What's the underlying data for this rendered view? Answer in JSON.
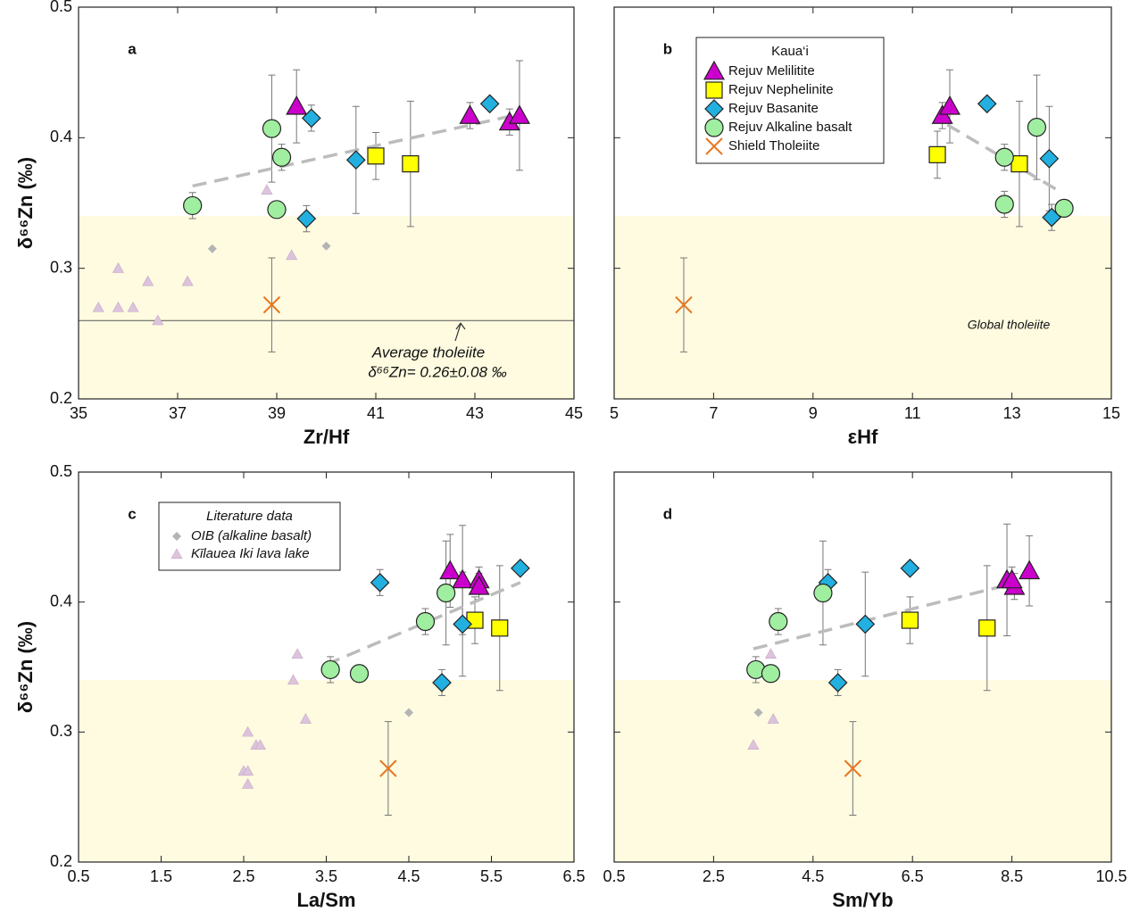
{
  "chart_data": [
    {
      "type": "scatter",
      "panel_label": "a",
      "x_label": "Zr/Hf",
      "y_label": "δ⁶⁶Zn (‰)",
      "xlim": [
        35,
        45
      ],
      "ylim": [
        0.2,
        0.5
      ],
      "xticks": [
        35,
        37,
        39,
        41,
        43,
        45
      ],
      "yticks": [
        0.2,
        0.3,
        0.4,
        0.5
      ],
      "ytick_labels": true,
      "shaded_range": [
        0.2,
        0.34
      ],
      "reference_line": 0.26,
      "annotations": [
        "Average tholeiite",
        "δ⁶⁶Zn= 0.26±0.08 ‰"
      ],
      "trend": {
        "x": [
          37.3,
          43.9
        ],
        "values": [
          0.363,
          0.418
        ]
      },
      "series": [
        {
          "marker": "triangle",
          "color": "#cc00cc",
          "x": [
            39.4,
            42.9,
            43.7,
            43.9
          ],
          "values": [
            0.424,
            0.417,
            0.412,
            0.417
          ],
          "errors": [
            0.028,
            0.01,
            0.01,
            0.042
          ]
        },
        {
          "marker": "square",
          "color": "#ffff00",
          "x": [
            41.0,
            41.7
          ],
          "values": [
            0.386,
            0.38
          ],
          "errors": [
            0.018,
            0.048
          ]
        },
        {
          "marker": "diamond",
          "color": "#22b0e0",
          "x": [
            39.7,
            40.6,
            39.6,
            43.3
          ],
          "values": [
            0.415,
            0.383,
            0.338,
            0.426
          ],
          "errors": [
            0.01,
            0.041,
            0.01,
            null
          ]
        },
        {
          "marker": "circle",
          "color": "#a0eea0",
          "x": [
            38.9,
            39.1,
            39.0,
            37.3
          ],
          "values": [
            0.407,
            0.385,
            0.345,
            0.348
          ],
          "errors": [
            0.041,
            0.01,
            null,
            0.01
          ]
        },
        {
          "marker": "x",
          "color": "#e87722",
          "x": [
            38.9
          ],
          "values": [
            0.272
          ],
          "errors": [
            0.036
          ]
        },
        {
          "marker": "small-diamond",
          "color": "#b4b4b4",
          "x": [
            37.7,
            40.0
          ],
          "values": [
            0.315,
            0.317
          ],
          "errors": [
            null,
            null
          ]
        },
        {
          "marker": "small-triangle",
          "color": "#dcc4dc",
          "x": [
            35.4,
            35.8,
            36.1,
            35.8,
            36.4,
            36.6,
            37.2,
            38.8,
            39.3
          ],
          "values": [
            0.27,
            0.27,
            0.27,
            0.3,
            0.29,
            0.26,
            0.29,
            0.36,
            0.31
          ],
          "errors": [
            null,
            null,
            null,
            null,
            null,
            null,
            null,
            null,
            null
          ]
        }
      ]
    },
    {
      "type": "scatter",
      "panel_label": "b",
      "x_label": "εHf",
      "xlim": [
        5,
        15
      ],
      "ylim": [
        0.2,
        0.5
      ],
      "xticks": [
        5,
        7,
        9,
        11,
        13,
        15
      ],
      "yticks": [
        0.2,
        0.3,
        0.4,
        0.5
      ],
      "ytick_labels": false,
      "shaded_range": [
        0.2,
        0.34
      ],
      "annotations": [
        "Global tholeiite"
      ],
      "legend": {
        "title": "Kaua‘i",
        "corner": "top-right"
      },
      "trend": {
        "x": [
          11.7,
          14.0
        ],
        "values": [
          0.41,
          0.358
        ]
      },
      "series": [
        {
          "name": "Rejuv Melilitite",
          "marker": "triangle",
          "color": "#cc00cc",
          "x": [
            11.6,
            11.75
          ],
          "values": [
            0.417,
            0.424
          ],
          "errors": [
            0.01,
            0.028
          ]
        },
        {
          "name": "Rejuv Nephelinite",
          "marker": "square",
          "color": "#ffff00",
          "x": [
            11.5,
            13.15
          ],
          "values": [
            0.387,
            0.38
          ],
          "errors": [
            0.018,
            0.048
          ]
        },
        {
          "name": "Rejuv Basanite",
          "marker": "diamond",
          "color": "#22b0e0",
          "x": [
            12.5,
            13.75,
            13.8
          ],
          "values": [
            0.426,
            0.384,
            0.339
          ],
          "errors": [
            null,
            0.04,
            0.01
          ]
        },
        {
          "name": "Rejuv Alkaline basalt",
          "marker": "circle",
          "color": "#a0eea0",
          "x": [
            13.5,
            12.85,
            12.85,
            14.05
          ],
          "values": [
            0.408,
            0.385,
            0.349,
            0.346
          ],
          "errors": [
            0.04,
            0.01,
            0.01,
            null
          ]
        },
        {
          "name": "Shield Tholeiite",
          "marker": "x",
          "color": "#e87722",
          "x": [
            6.4
          ],
          "values": [
            0.272
          ],
          "errors": [
            0.036
          ]
        }
      ]
    },
    {
      "type": "scatter",
      "panel_label": "c",
      "x_label": "La/Sm",
      "y_label": "δ⁶⁶Zn (‰)",
      "xlim": [
        0.5,
        6.5
      ],
      "ylim": [
        0.2,
        0.5
      ],
      "xticks": [
        0.5,
        1.5,
        2.5,
        3.5,
        4.5,
        5.5,
        6.5
      ],
      "yticks": [
        0.2,
        0.3,
        0.4,
        0.5
      ],
      "ytick_labels": true,
      "shaded_range": [
        0.2,
        0.34
      ],
      "legend": {
        "title": "Literature data",
        "corner": "top-left"
      },
      "trend": {
        "x": [
          3.5,
          5.85
        ],
        "values": [
          0.352,
          0.415
        ]
      },
      "series": [
        {
          "marker": "triangle",
          "color": "#cc00cc",
          "x": [
            5.0,
            5.15,
            5.35,
            5.35
          ],
          "values": [
            0.424,
            0.417,
            0.417,
            0.412
          ],
          "errors": [
            0.028,
            0.042,
            0.01,
            0.01
          ]
        },
        {
          "marker": "square",
          "color": "#ffff00",
          "x": [
            5.3,
            5.6
          ],
          "values": [
            0.386,
            0.38
          ],
          "errors": [
            0.018,
            0.048
          ]
        },
        {
          "marker": "diamond",
          "color": "#22b0e0",
          "x": [
            4.15,
            5.85,
            5.15,
            4.9
          ],
          "values": [
            0.415,
            0.426,
            0.383,
            0.338
          ],
          "errors": [
            0.01,
            null,
            0.04,
            0.01
          ]
        },
        {
          "marker": "circle",
          "color": "#a0eea0",
          "x": [
            4.95,
            4.7,
            3.55,
            3.9
          ],
          "values": [
            0.407,
            0.385,
            0.348,
            0.345
          ],
          "errors": [
            0.04,
            0.01,
            0.01,
            null
          ]
        },
        {
          "marker": "x",
          "color": "#e87722",
          "x": [
            4.25
          ],
          "values": [
            0.272
          ],
          "errors": [
            0.036
          ]
        },
        {
          "name": "OIB (alkaline basalt)",
          "marker": "small-diamond",
          "color": "#b4b4b4",
          "x": [
            4.5
          ],
          "values": [
            0.315
          ],
          "errors": [
            null
          ]
        },
        {
          "name": "Kīlauea Iki lava lake",
          "marker": "small-triangle",
          "color": "#dcc4dc",
          "x": [
            2.55,
            2.65,
            2.7,
            2.5,
            2.55,
            2.55,
            3.15,
            3.1,
            3.25
          ],
          "values": [
            0.3,
            0.29,
            0.29,
            0.27,
            0.27,
            0.26,
            0.36,
            0.34,
            0.31
          ],
          "errors": [
            null,
            null,
            null,
            null,
            null,
            null,
            null,
            null,
            null
          ]
        }
      ]
    },
    {
      "type": "scatter",
      "panel_label": "d",
      "x_label": "Sm/Yb",
      "xlim": [
        0.5,
        10.5
      ],
      "ylim": [
        0.2,
        0.5
      ],
      "xticks": [
        0.5,
        2.5,
        4.5,
        6.5,
        8.5,
        10.5
      ],
      "yticks": [
        0.2,
        0.3,
        0.4,
        0.5
      ],
      "ytick_labels": false,
      "shaded_range": [
        0.2,
        0.34
      ],
      "trend": {
        "x": [
          3.3,
          8.6
        ],
        "values": [
          0.364,
          0.415
        ]
      },
      "series": [
        {
          "marker": "triangle",
          "color": "#cc00cc",
          "x": [
            8.85,
            8.4,
            8.55,
            8.5
          ],
          "values": [
            0.424,
            0.417,
            0.412,
            0.417
          ],
          "errors": [
            0.027,
            0.043,
            0.01,
            0.01
          ]
        },
        {
          "marker": "square",
          "color": "#ffff00",
          "x": [
            6.45,
            8.0
          ],
          "values": [
            0.386,
            0.38
          ],
          "errors": [
            0.018,
            0.048
          ]
        },
        {
          "marker": "diamond",
          "color": "#22b0e0",
          "x": [
            4.8,
            6.45,
            5.55,
            5.0
          ],
          "values": [
            0.415,
            0.426,
            0.383,
            0.338
          ],
          "errors": [
            0.01,
            null,
            0.04,
            0.01
          ]
        },
        {
          "marker": "circle",
          "color": "#a0eea0",
          "x": [
            4.7,
            3.8,
            3.35,
            3.65
          ],
          "values": [
            0.407,
            0.385,
            0.348,
            0.345
          ],
          "errors": [
            0.04,
            0.01,
            0.01,
            null
          ]
        },
        {
          "marker": "x",
          "color": "#e87722",
          "x": [
            5.3
          ],
          "values": [
            0.272
          ],
          "errors": [
            0.036
          ]
        },
        {
          "marker": "small-diamond",
          "color": "#b4b4b4",
          "x": [
            3.4
          ],
          "values": [
            0.315
          ],
          "errors": [
            null
          ]
        },
        {
          "marker": "small-triangle",
          "color": "#dcc4dc",
          "x": [
            3.3,
            3.7,
            3.65
          ],
          "values": [
            0.29,
            0.31,
            0.36
          ],
          "errors": [
            null,
            null,
            null
          ]
        }
      ]
    }
  ]
}
